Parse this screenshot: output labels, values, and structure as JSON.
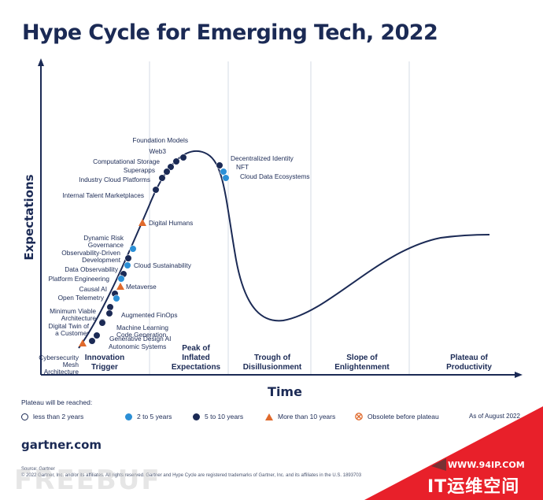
{
  "chart_data": {
    "type": "line",
    "title": "Hype Cycle for Emerging Tech, 2022",
    "ylabel": "Expectations",
    "xlabel": "Time",
    "phases": [
      "Innovation Trigger",
      "Peak of Inflated Expectations",
      "Trough of Disillusionment",
      "Slope of Enlightenment",
      "Plateau of Productivity"
    ],
    "technologies": [
      {
        "name": "Foundation Models",
        "status": "5 to 10 years",
        "phase": "Peak of Inflated Expectations"
      },
      {
        "name": "Web3",
        "status": "5 to 10 years",
        "phase": "Peak of Inflated Expectations"
      },
      {
        "name": "Computational Storage",
        "status": "5 to 10 years",
        "phase": "Peak of Inflated Expectations"
      },
      {
        "name": "Superapps",
        "status": "5 to 10 years",
        "phase": "Peak of Inflated Expectations"
      },
      {
        "name": "Industry Cloud Platforms",
        "status": "5 to 10 years",
        "phase": "Peak of Inflated Expectations"
      },
      {
        "name": "Internal Talent Marketplaces",
        "status": "5 to 10 years",
        "phase": "Peak of Inflated Expectations"
      },
      {
        "name": "Digital Humans",
        "status": "More than 10 years",
        "phase": "Innovation Trigger"
      },
      {
        "name": "Dynamic Risk Governance",
        "status": "2 to 5 years",
        "phase": "Innovation Trigger"
      },
      {
        "name": "Observability-Driven Development",
        "status": "5 to 10 years",
        "phase": "Innovation Trigger"
      },
      {
        "name": "Cloud Sustainability",
        "status": "2 to 5 years",
        "phase": "Innovation Trigger"
      },
      {
        "name": "Data Observability",
        "status": "5 to 10 years",
        "phase": "Innovation Trigger"
      },
      {
        "name": "Platform Engineering",
        "status": "2 to 5 years",
        "phase": "Innovation Trigger"
      },
      {
        "name": "Metaverse",
        "status": "More than 10 years",
        "phase": "Innovation Trigger"
      },
      {
        "name": "Causal AI",
        "status": "5 to 10 years",
        "phase": "Innovation Trigger"
      },
      {
        "name": "Open Telemetry",
        "status": "2 to 5 years",
        "phase": "Innovation Trigger"
      },
      {
        "name": "Minimum Viable Architecture",
        "status": "5 to 10 years",
        "phase": "Innovation Trigger"
      },
      {
        "name": "Augmented FinOps",
        "status": "5 to 10 years",
        "phase": "Innovation Trigger"
      },
      {
        "name": "Digital Twin of a Customer",
        "status": "5 to 10 years",
        "phase": "Innovation Trigger"
      },
      {
        "name": "Machine Learning Code Generation",
        "status": "5 to 10 years",
        "phase": "Innovation Trigger"
      },
      {
        "name": "Generative Design AI",
        "status": "5 to 10 years",
        "phase": "Innovation Trigger"
      },
      {
        "name": "Autonomic Systems",
        "status": "5 to 10 years",
        "phase": "Innovation Trigger"
      },
      {
        "name": "Cybersecurity Mesh Architecture",
        "status": "More than 10 years",
        "phase": "Innovation Trigger"
      },
      {
        "name": "Decentralized Identity",
        "status": "5 to 10 years",
        "phase": "Peak of Inflated Expectations"
      },
      {
        "name": "NFT",
        "status": "2 to 5 years",
        "phase": "Peak of Inflated Expectations"
      },
      {
        "name": "Cloud Data Ecosystems",
        "status": "2 to 5 years",
        "phase": "Peak of Inflated Expectations"
      }
    ],
    "legend": {
      "title": "Plateau will be reached:",
      "items": [
        {
          "label": "less than 2 years",
          "color": "#ffffff",
          "shape": "hollow-circle"
        },
        {
          "label": "2 to 5 years",
          "color": "#2b8fd6",
          "shape": "circle"
        },
        {
          "label": "5 to 10 years",
          "color": "#1b2a55",
          "shape": "circle"
        },
        {
          "label": "More than 10 years",
          "color": "#e06a2c",
          "shape": "triangle"
        },
        {
          "label": "Obsolete before plateau",
          "color": "#e06a2c",
          "shape": "crossed-circle"
        }
      ]
    },
    "as_of": "As of August 2022"
  },
  "footer": {
    "site": "gartner.com",
    "source_line": "Source: Gartner",
    "copyright": "© 2022 Gartner, Inc. and/or its affiliates. All rights reserved. Gartner and Hype Cycle are registered trademarks of Gartner, Inc. and its affiliates in the U.S. 1893703"
  },
  "watermark": {
    "text": "FREEBUF",
    "badge_url": "WWW.94IP.COM",
    "badge_name": "IT运维空间"
  },
  "colors": {
    "navy": "#1b2a55",
    "blue": "#2b8fd6",
    "orange": "#e06a2c",
    "badge": "#e8202a"
  }
}
